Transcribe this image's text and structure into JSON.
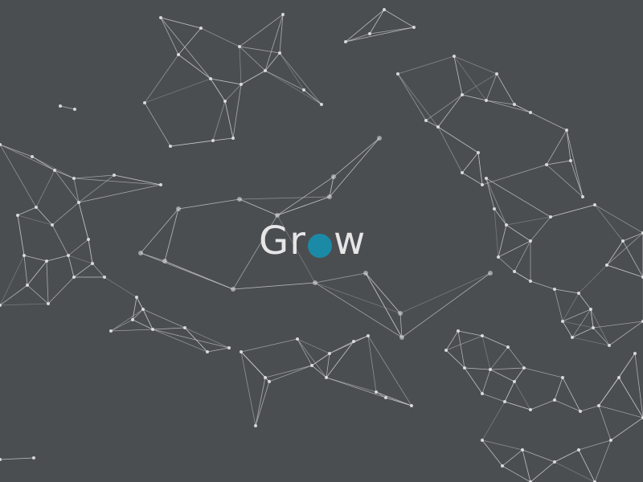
{
  "logo": {
    "text_before": "Gr",
    "text_after": "w",
    "text_color": "#e6e6e6",
    "dot_color": "#1b8aa6"
  },
  "theme": {
    "background": "#4b4e51",
    "network_line_color": "#c9cbcd",
    "network_node_color": "#e2e3e4"
  }
}
